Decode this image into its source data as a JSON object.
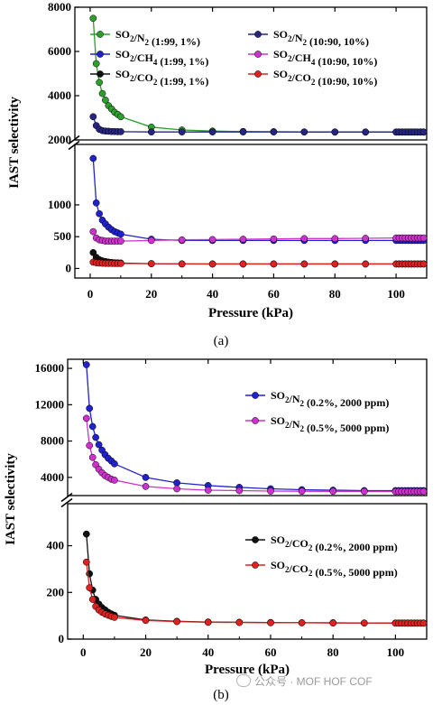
{
  "figure": {
    "watermark": "公众号 · MOF HOF COF",
    "panels": [
      {
        "label": "(a)",
        "xlabel": "Pressure (kPa)",
        "ylabel": "IAST selectivity",
        "xticks": [
          "0",
          "20",
          "40",
          "60",
          "80",
          "100"
        ],
        "upper_yticks": [
          "2000",
          "4000",
          "6000",
          "8000"
        ],
        "lower_yticks": [
          "0",
          "500",
          "1000"
        ]
      },
      {
        "label": "(b)",
        "xlabel": "Pressure (kPa)",
        "ylabel": "IAST selectivity",
        "xticks": [
          "0",
          "20",
          "40",
          "60",
          "80",
          "100"
        ],
        "upper_yticks": [
          "4000",
          "8000",
          "12000",
          "16000"
        ],
        "lower_yticks": [
          "0",
          "200",
          "400"
        ]
      }
    ]
  },
  "chart_data": [
    {
      "type": "line",
      "panel": "(a)",
      "xlabel": "Pressure (kPa)",
      "ylabel": "IAST selectivity",
      "xlim": [
        -5,
        110
      ],
      "broken_y_axis": true,
      "ylim_lower": [
        -150,
        1950
      ],
      "ylim_upper": [
        2000,
        8000
      ],
      "legend_placement": "top",
      "grid": false,
      "x": [
        1,
        2,
        3,
        4,
        5,
        6,
        7,
        8,
        9,
        10,
        20,
        30,
        40,
        50,
        60,
        70,
        80,
        90,
        100,
        101,
        102,
        103,
        104,
        105,
        106,
        107,
        108,
        109
      ],
      "series": [
        {
          "name": "SO2/N2 (1:99, 1%)",
          "segment": "upper",
          "color": "#2e9e2e",
          "values": [
            7500,
            5450,
            4600,
            4100,
            3800,
            3550,
            3400,
            3250,
            3150,
            3050,
            2580,
            2450,
            2400,
            2380,
            2370,
            2360,
            2355,
            2350,
            2350,
            2350,
            2350,
            2350,
            2350,
            2350,
            2350,
            2350,
            2350,
            2350
          ]
        },
        {
          "name": "SO2/N2 (10:90, 10%)",
          "segment": "upper",
          "color": "#262680",
          "values": [
            3050,
            2650,
            2480,
            2420,
            2400,
            2390,
            2380,
            2380,
            2370,
            2370,
            2360,
            2360,
            2360,
            2360,
            2360,
            2360,
            2360,
            2360,
            2360,
            2360,
            2360,
            2360,
            2360,
            2360,
            2360,
            2360,
            2360,
            2360
          ]
        },
        {
          "name": "SO2/CH4 (1:99, 1%)",
          "segment": "lower",
          "color": "#2222cc",
          "values": [
            1730,
            1030,
            860,
            760,
            700,
            650,
            610,
            580,
            560,
            540,
            460,
            440,
            440,
            440,
            440,
            440,
            440,
            440,
            440,
            440,
            440,
            440,
            440,
            440,
            440,
            440,
            440,
            440
          ]
        },
        {
          "name": "SO2/CH4 (10:90, 10%)",
          "segment": "lower",
          "color": "#cc33cc",
          "values": [
            580,
            480,
            450,
            440,
            430,
            430,
            430,
            430,
            430,
            430,
            440,
            450,
            455,
            460,
            465,
            470,
            470,
            475,
            480,
            480,
            480,
            480,
            480,
            480,
            480,
            480,
            480,
            480
          ]
        },
        {
          "name": "SO2/CO2 (1:99, 1%)",
          "segment": "lower",
          "color": "#111111",
          "values": [
            250,
            175,
            140,
            120,
            110,
            100,
            95,
            90,
            88,
            85,
            75,
            72,
            72,
            72,
            72,
            72,
            72,
            72,
            72,
            72,
            72,
            72,
            72,
            72,
            72,
            72,
            72,
            72
          ]
        },
        {
          "name": "SO2/CO2 (10:90, 10%)",
          "segment": "lower",
          "color": "#dd2222",
          "values": [
            100,
            90,
            85,
            82,
            80,
            80,
            80,
            78,
            78,
            78,
            75,
            72,
            70,
            70,
            70,
            70,
            70,
            70,
            70,
            70,
            70,
            70,
            70,
            70,
            70,
            70,
            70,
            70
          ]
        }
      ],
      "legend": [
        {
          "formula": "SO2/N2",
          "detail": "(1:99, 1%)",
          "color": "#2e9e2e"
        },
        {
          "formula": "SO2/N2",
          "detail": "(10:90, 10%)",
          "color": "#262680"
        },
        {
          "formula": "SO2/CH4",
          "detail": "(1:99, 1%)",
          "color": "#2222cc"
        },
        {
          "formula": "SO2/CH4",
          "detail": "(10:90, 10%)",
          "color": "#cc33cc"
        },
        {
          "formula": "SO2/CO2",
          "detail": "(1:99, 1%)",
          "color": "#111111"
        },
        {
          "formula": "SO2/CO2",
          "detail": "(10:90, 10%)",
          "color": "#dd2222"
        }
      ]
    },
    {
      "type": "line",
      "panel": "(b)",
      "xlabel": "Pressure (kPa)",
      "ylabel": "IAST selectivity",
      "xlim": [
        -5,
        110
      ],
      "broken_y_axis": true,
      "ylim_lower": [
        0,
        580
      ],
      "ylim_upper": [
        2000,
        17000
      ],
      "legend_placement": "right",
      "grid": false,
      "x": [
        1,
        2,
        3,
        4,
        5,
        6,
        7,
        8,
        9,
        10,
        20,
        30,
        40,
        50,
        60,
        70,
        80,
        90,
        100,
        101,
        102,
        103,
        104,
        105,
        106,
        107,
        108,
        109
      ],
      "series": [
        {
          "name": "SO2/N2 (0.2%, 2000 ppm)",
          "segment": "upper",
          "color": "#2222cc",
          "values": [
            16400,
            11600,
            9600,
            8400,
            7600,
            7000,
            6500,
            6100,
            5800,
            5500,
            4000,
            3400,
            3100,
            2900,
            2750,
            2650,
            2600,
            2550,
            2550,
            2550,
            2550,
            2550,
            2550,
            2550,
            2550,
            2550,
            2550,
            2550
          ]
        },
        {
          "name": "SO2/N2 (0.5%, 5000 ppm)",
          "segment": "upper",
          "color": "#cc33cc",
          "values": [
            10500,
            7500,
            6200,
            5400,
            4900,
            4500,
            4200,
            4000,
            3800,
            3700,
            3000,
            2750,
            2600,
            2550,
            2500,
            2480,
            2470,
            2460,
            2450,
            2450,
            2450,
            2450,
            2450,
            2450,
            2450,
            2450,
            2450,
            2450
          ]
        },
        {
          "name": "SO2/CO2 (0.2%, 2000 ppm)",
          "segment": "lower",
          "color": "#111111",
          "values": [
            450,
            280,
            210,
            170,
            150,
            135,
            125,
            115,
            108,
            102,
            82,
            76,
            73,
            72,
            71,
            70,
            70,
            69,
            69,
            69,
            69,
            69,
            69,
            69,
            69,
            69,
            69,
            69
          ]
        },
        {
          "name": "SO2/CO2 (0.5%, 5000 ppm)",
          "segment": "lower",
          "color": "#dd2222",
          "values": [
            330,
            220,
            170,
            140,
            125,
            115,
            108,
            102,
            97,
            93,
            80,
            75,
            72,
            71,
            70,
            70,
            69,
            69,
            68,
            68,
            68,
            68,
            68,
            68,
            68,
            68,
            68,
            68
          ]
        }
      ],
      "legend": [
        {
          "formula": "SO2/N2",
          "detail": "(0.2%, 2000 ppm)",
          "color": "#2222cc"
        },
        {
          "formula": "SO2/N2",
          "detail": "(0.5%, 5000 ppm)",
          "color": "#cc33cc"
        },
        {
          "formula": "SO2/CO2",
          "detail": "(0.2%, 2000 ppm)",
          "color": "#111111"
        },
        {
          "formula": "SO2/CO2",
          "detail": "(0.5%, 5000 ppm)",
          "color": "#dd2222"
        }
      ]
    }
  ]
}
